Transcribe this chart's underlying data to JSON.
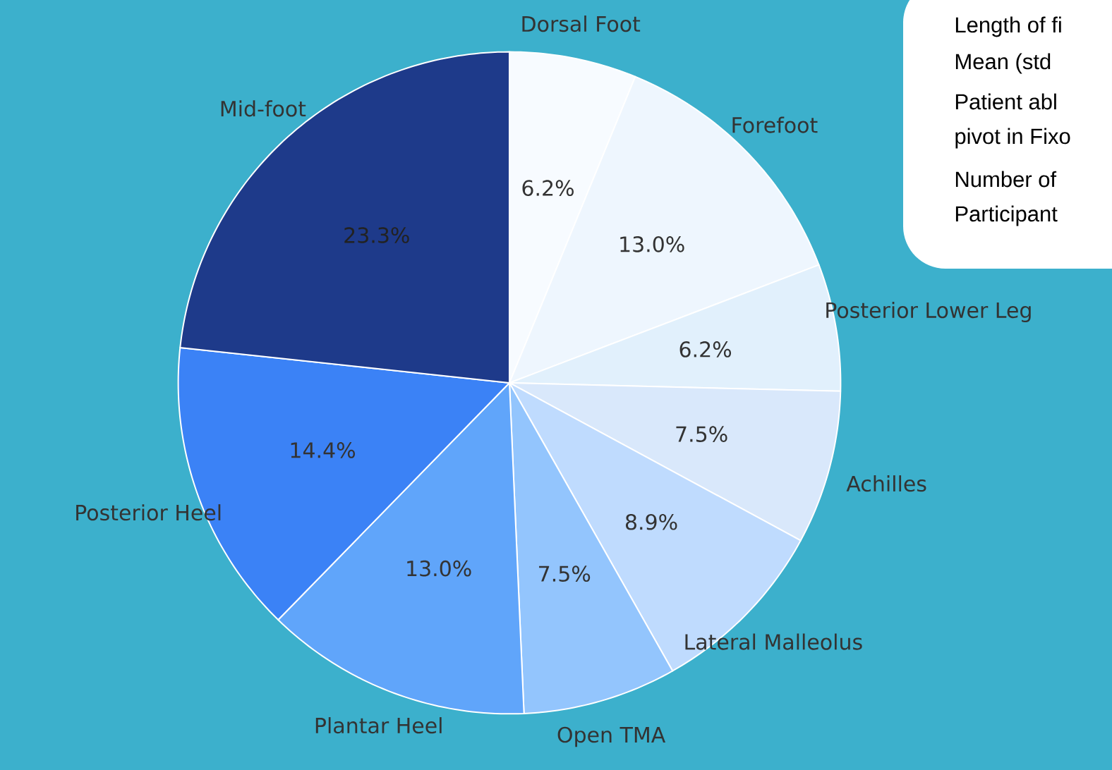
{
  "chart_data": {
    "type": "pie",
    "categories": [
      "Dorsal Foot",
      "Forefoot",
      "Posterior Lower Leg",
      "Achilles",
      "Lateral Malleolus",
      "Open TMA",
      "Plantar Heel",
      "Posterior Heel",
      "Mid-foot"
    ],
    "values": [
      6.2,
      13.0,
      6.2,
      7.5,
      8.9,
      7.5,
      13.0,
      14.4,
      23.3
    ],
    "value_labels": [
      "6.2%",
      "13.0%",
      "6.2%",
      "7.5%",
      "8.9%",
      "7.5%",
      "13.0%",
      "14.4%",
      "23.3%"
    ],
    "colors": [
      "#f7fbff",
      "#eef6fe",
      "#e1f0fc",
      "#d9e8fb",
      "#bfdbfe",
      "#93c5fd",
      "#60a5fa",
      "#3b82f6",
      "#1e3a8a"
    ],
    "annotations": [
      "Length of fi",
      "Mean (std",
      "Patient abl",
      "pivot in Fixo",
      "Number of",
      "Participant"
    ]
  }
}
